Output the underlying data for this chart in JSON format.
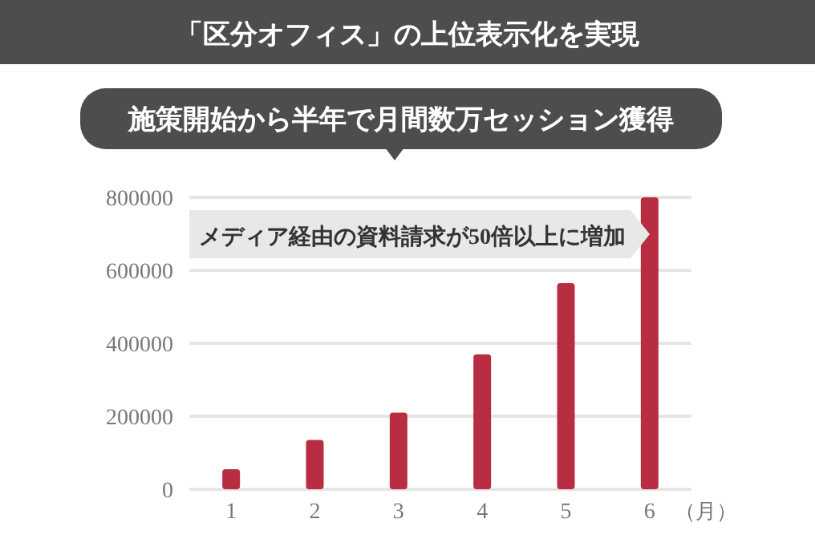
{
  "chart_data": {
    "type": "bar",
    "title": "「区分オフィス」の上位表示化を実現",
    "subtitle": "施策開始から半年で月間数万セッション獲得",
    "annotations": [
      "メディア経由の資料請求が50倍以上に増加"
    ],
    "categories": [
      "1",
      "2",
      "3",
      "4",
      "5",
      "6"
    ],
    "xlabel": "（月）",
    "values": [
      55000,
      135000,
      210000,
      370000,
      565000,
      800000
    ],
    "color": "#b92d42",
    "ylim": [
      0,
      800000
    ],
    "yticks": [
      0,
      200000,
      400000,
      600000,
      800000
    ],
    "grid": "y"
  }
}
